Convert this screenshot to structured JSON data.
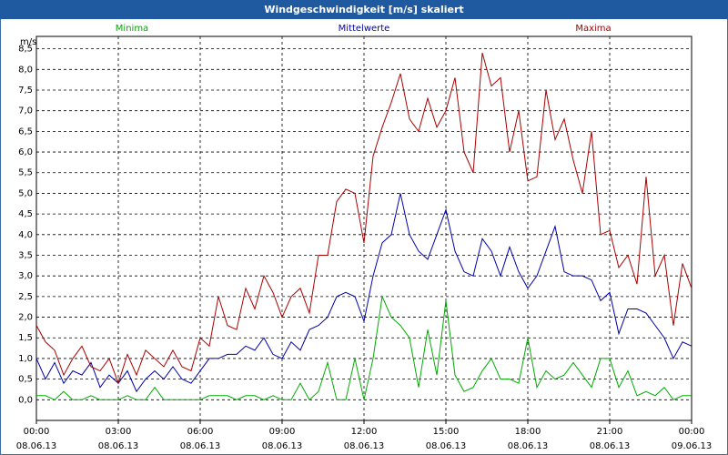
{
  "chart_data": {
    "type": "line",
    "title": "Windgeschwindigkeit [m/s] skaliert",
    "y_label": "m/s",
    "x": [
      0,
      20,
      40,
      60,
      80,
      100,
      120,
      140,
      160,
      180,
      200,
      220,
      240,
      260,
      280,
      300,
      320,
      340,
      360,
      380,
      400,
      420,
      440,
      460,
      480,
      500,
      520,
      540,
      560,
      580,
      600,
      620,
      640,
      660,
      680,
      700,
      720,
      740,
      760,
      780,
      800,
      820,
      840,
      860,
      880,
      900,
      920,
      940,
      960,
      980,
      1000,
      1020,
      1040,
      1060,
      1080,
      1100,
      1120,
      1140,
      1160,
      1180,
      1200,
      1220,
      1240,
      1260,
      1280,
      1300,
      1320,
      1340,
      1360,
      1380,
      1400,
      1420,
      1440
    ],
    "series": [
      {
        "name": "Minima",
        "color": "#00aa00",
        "values": [
          0.1,
          0.1,
          0,
          0.2,
          0,
          0,
          0.1,
          0,
          0,
          0,
          0.1,
          0,
          0,
          0.3,
          0,
          0,
          0,
          0,
          0,
          0.1,
          0.1,
          0.1,
          0,
          0.1,
          0.1,
          0,
          0.1,
          0,
          0,
          0.4,
          0,
          0.2,
          0.9,
          0,
          0,
          1.0,
          0,
          1.0,
          2.5,
          2.0,
          1.8,
          1.5,
          0.3,
          1.7,
          0.6,
          2.4,
          0.6,
          0.2,
          0.3,
          0.7,
          1.0,
          0.5,
          0.5,
          0.4,
          1.5,
          0.3,
          0.7,
          0.5,
          0.6,
          0.9,
          0.6,
          0.3,
          1.0,
          1.0,
          0.3,
          0.7,
          0.1,
          0.2,
          0.1,
          0.3,
          0,
          0.1,
          0.1
        ]
      },
      {
        "name": "Mittelwerte",
        "color": "#0000aa",
        "values": [
          1.0,
          0.5,
          0.9,
          0.4,
          0.7,
          0.6,
          0.9,
          0.3,
          0.6,
          0.4,
          0.7,
          0.2,
          0.5,
          0.7,
          0.5,
          0.8,
          0.5,
          0.4,
          0.7,
          1.0,
          1.0,
          1.1,
          1.1,
          1.3,
          1.2,
          1.5,
          1.1,
          1.0,
          1.4,
          1.2,
          1.7,
          1.8,
          2.0,
          2.5,
          2.6,
          2.5,
          1.9,
          3.0,
          3.8,
          4.0,
          5.0,
          4.0,
          3.6,
          3.4,
          4.0,
          4.6,
          3.6,
          3.1,
          3.0,
          3.9,
          3.6,
          3.0,
          3.7,
          3.1,
          2.7,
          3.0,
          3.6,
          4.2,
          3.1,
          3.0,
          3.0,
          2.9,
          2.4,
          2.6,
          1.6,
          2.2,
          2.2,
          2.1,
          1.8,
          1.5,
          1.0,
          1.4,
          1.3
        ]
      },
      {
        "name": "Maxima",
        "color": "#aa0000",
        "values": [
          1.8,
          1.4,
          1.2,
          0.6,
          1.0,
          1.3,
          0.8,
          0.7,
          1.0,
          0.4,
          1.1,
          0.6,
          1.2,
          1.0,
          0.8,
          1.2,
          0.8,
          0.7,
          1.5,
          1.3,
          2.5,
          1.8,
          1.7,
          2.7,
          2.2,
          3.0,
          2.6,
          2.0,
          2.5,
          2.7,
          2.1,
          3.5,
          3.5,
          4.8,
          5.1,
          5.0,
          3.8,
          5.9,
          6.6,
          7.2,
          7.9,
          6.8,
          6.5,
          7.3,
          6.6,
          7.0,
          7.8,
          6.0,
          5.5,
          8.4,
          7.6,
          7.8,
          6.0,
          7.0,
          5.3,
          5.4,
          7.5,
          6.3,
          6.8,
          5.8,
          5.0,
          6.5,
          4.0,
          4.1,
          3.2,
          3.5,
          2.8,
          5.4,
          3.0,
          3.5,
          1.8,
          3.3,
          2.7
        ]
      }
    ],
    "xlim": [
      0,
      1440
    ],
    "xticks": [
      {
        "value": 0,
        "label": [
          "00:00",
          "08.06.13"
        ]
      },
      {
        "value": 180,
        "label": [
          "03:00",
          "08.06.13"
        ]
      },
      {
        "value": 360,
        "label": [
          "06:00",
          "08.06.13"
        ]
      },
      {
        "value": 540,
        "label": [
          "09:00",
          "08.06.13"
        ]
      },
      {
        "value": 720,
        "label": [
          "12:00",
          "08.06.13"
        ]
      },
      {
        "value": 900,
        "label": [
          "15:00",
          "08.06.13"
        ]
      },
      {
        "value": 1080,
        "label": [
          "18:00",
          "08.06.13"
        ]
      },
      {
        "value": 1260,
        "label": [
          "21:00",
          "08.06.13"
        ]
      },
      {
        "value": 1440,
        "label": [
          "00:00",
          "09.06.13"
        ]
      }
    ],
    "ylim": [
      -0.5,
      8.8
    ],
    "yticks": [
      {
        "value": 0,
        "label": "0,0"
      },
      {
        "value": 0.5,
        "label": "0,5"
      },
      {
        "value": 1,
        "label": "1,0"
      },
      {
        "value": 1.5,
        "label": "1,5"
      },
      {
        "value": 2,
        "label": "2,0"
      },
      {
        "value": 2.5,
        "label": "2,5"
      },
      {
        "value": 3,
        "label": "3,0"
      },
      {
        "value": 3.5,
        "label": "3,5"
      },
      {
        "value": 4,
        "label": "4,0"
      },
      {
        "value": 4.5,
        "label": "4,5"
      },
      {
        "value": 5,
        "label": "5,0"
      },
      {
        "value": 5.5,
        "label": "5,5"
      },
      {
        "value": 6,
        "label": "6,0"
      },
      {
        "value": 6.5,
        "label": "6,5"
      },
      {
        "value": 7,
        "label": "7,0"
      },
      {
        "value": 7.5,
        "label": "7,5"
      },
      {
        "value": 8,
        "label": "8,0"
      },
      {
        "value": 8.5,
        "label": "8,5"
      }
    ],
    "grid": true
  }
}
